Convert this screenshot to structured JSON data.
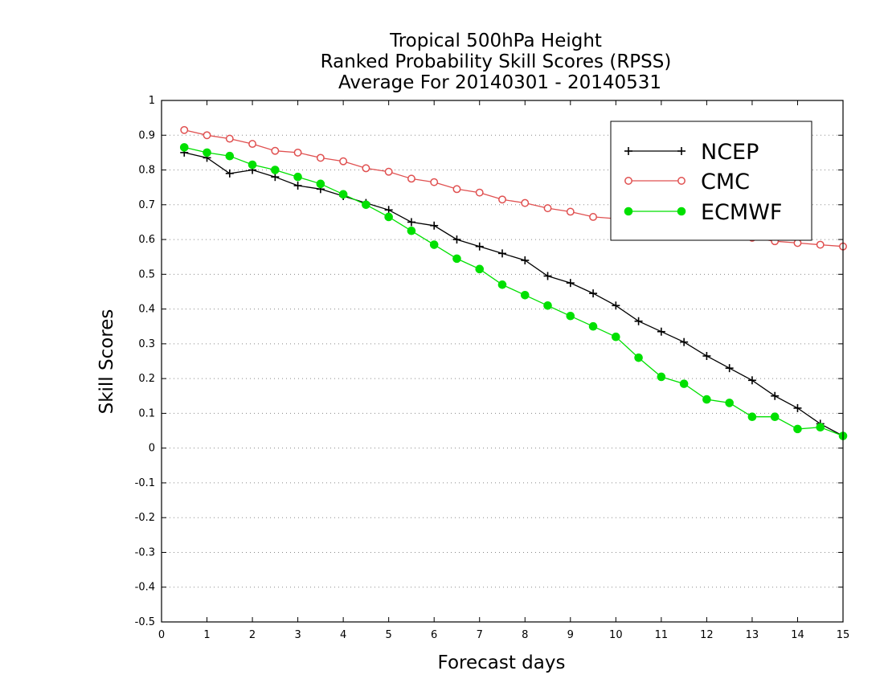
{
  "chart_data": {
    "type": "line",
    "title_lines": [
      "Tropical 500hPa Height",
      "Ranked Probability Skill Scores (RPSS)",
      "Average For 20140301 - 20140531"
    ],
    "xlabel": "Forecast days",
    "ylabel": "Skill Scores",
    "xlim": [
      0,
      15
    ],
    "ylim": [
      -0.5,
      1
    ],
    "xticks": [
      "0",
      "1",
      "2",
      "3",
      "4",
      "5",
      "6",
      "7",
      "8",
      "9",
      "10",
      "11",
      "12",
      "13",
      "14",
      "15"
    ],
    "yticks": [
      "1",
      "0.9",
      "0.8",
      "0.7",
      "0.6",
      "0.5",
      "0.4",
      "0.3",
      "0.2",
      "0.1",
      "0",
      "-0.1",
      "-0.2",
      "-0.3",
      "-0.4",
      "-0.5"
    ],
    "grid": "horizontal dotted",
    "legend_position": "top-right",
    "x": [
      0.5,
      1,
      1.5,
      2,
      2.5,
      3,
      3.5,
      4,
      4.5,
      5,
      5.5,
      6,
      6.5,
      7,
      7.5,
      8,
      8.5,
      9,
      9.5,
      10,
      10.5,
      11,
      11.5,
      12,
      12.5,
      13,
      13.5,
      14,
      14.5,
      15
    ],
    "series": [
      {
        "name": "NCEP",
        "color": "#000000",
        "marker": "plus",
        "values": [
          0.85,
          0.835,
          0.79,
          0.8,
          0.78,
          0.755,
          0.745,
          0.725,
          0.705,
          0.685,
          0.65,
          0.64,
          0.6,
          0.58,
          0.56,
          0.54,
          0.495,
          0.475,
          0.445,
          0.41,
          0.365,
          0.335,
          0.305,
          0.265,
          0.23,
          0.195,
          0.15,
          0.115,
          0.07,
          0.035
        ]
      },
      {
        "name": "CMC",
        "color": "#e05050",
        "marker": "open-circle",
        "values": [
          0.915,
          0.9,
          0.89,
          0.875,
          0.855,
          0.85,
          0.835,
          0.825,
          0.805,
          0.795,
          0.775,
          0.765,
          0.745,
          0.735,
          0.715,
          0.705,
          0.69,
          0.68,
          0.665,
          0.66,
          0.655,
          0.645,
          0.635,
          0.625,
          0.615,
          0.605,
          0.595,
          0.59,
          0.585,
          0.58
        ]
      },
      {
        "name": "ECMWF",
        "color": "#00e000",
        "marker": "filled-circle",
        "values": [
          0.865,
          0.85,
          0.84,
          0.815,
          0.8,
          0.78,
          0.76,
          0.73,
          0.7,
          0.665,
          0.625,
          0.585,
          0.545,
          0.515,
          0.47,
          0.44,
          0.41,
          0.38,
          0.35,
          0.32,
          0.26,
          0.205,
          0.185,
          0.14,
          0.13,
          0.09,
          0.09,
          0.055,
          0.06,
          0.035
        ]
      }
    ]
  }
}
